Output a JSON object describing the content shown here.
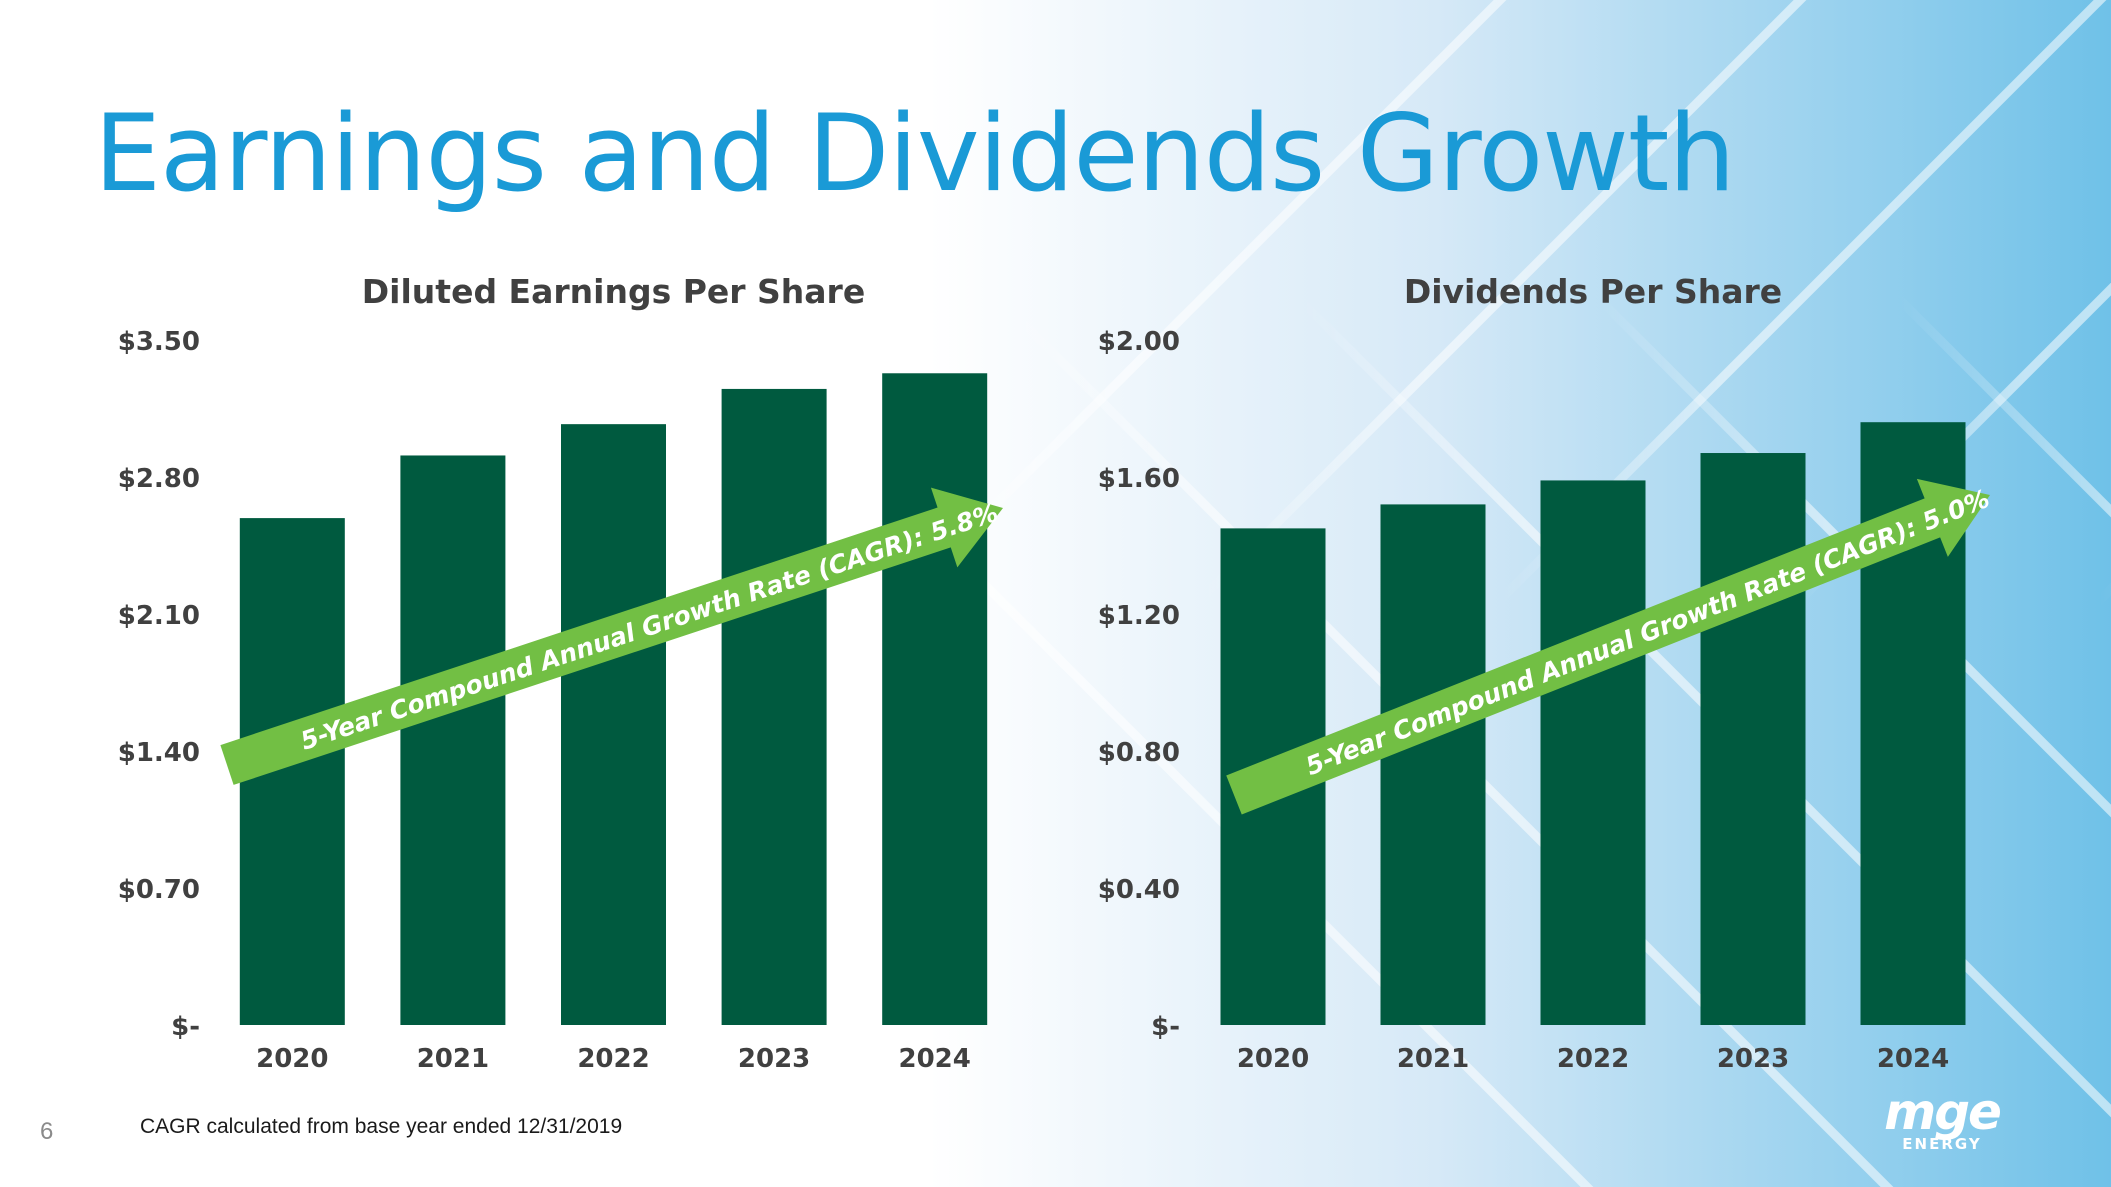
{
  "slide": {
    "title": "Earnings and Dividends Growth",
    "page_number": "6",
    "footnote": "CAGR calculated from base year ended 12/31/2019",
    "logo_text": "mge",
    "logo_subtext": "ENERGY"
  },
  "colors": {
    "title": "#1a9ad6",
    "bar": "#005a3f",
    "arrow": "#72bf44",
    "axis_text": "#404040",
    "background_gradient_end": "#6fc1e8"
  },
  "chart_data": [
    {
      "type": "bar",
      "title": "Diluted Earnings Per Share",
      "categories": [
        "2020",
        "2021",
        "2022",
        "2023",
        "2024"
      ],
      "values": [
        2.59,
        2.91,
        3.07,
        3.25,
        3.33
      ],
      "ylim": [
        0,
        3.5
      ],
      "yticks": [
        0,
        0.7,
        1.4,
        2.1,
        2.8,
        3.5
      ],
      "ytick_labels": [
        "$-",
        "$0.70",
        "$1.40",
        "$2.10",
        "$2.80",
        "$3.50"
      ],
      "xlabel": "",
      "ylabel": "",
      "grid": false,
      "annotation": "5-Year Compound Annual Growth Rate (CAGR): 5.8%"
    },
    {
      "type": "bar",
      "title": "Dividends Per Share",
      "categories": [
        "2020",
        "2021",
        "2022",
        "2023",
        "2024"
      ],
      "values": [
        1.45,
        1.52,
        1.59,
        1.67,
        1.76
      ],
      "ylim": [
        0,
        2.0
      ],
      "yticks": [
        0,
        0.4,
        0.8,
        1.2,
        1.6,
        2.0
      ],
      "ytick_labels": [
        "$-",
        "$0.40",
        "$0.80",
        "$1.20",
        "$1.60",
        "$2.00"
      ],
      "xlabel": "",
      "ylabel": "",
      "grid": false,
      "annotation": "5-Year Compound Annual Growth Rate (CAGR): 5.0%"
    }
  ]
}
